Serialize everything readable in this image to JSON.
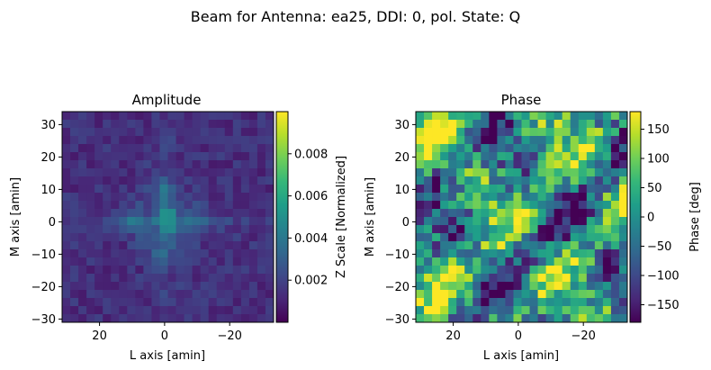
{
  "figure_title": "Beam for Antenna: ea25, DDI: 0, pol. State: Q",
  "chart_data": [
    {
      "type": "heatmap",
      "title": "Amplitude",
      "xlabel": "L axis [amin]",
      "ylabel": "M axis [amin]",
      "xlim": [
        31.5,
        -33.5
      ],
      "ylim": [
        -31.0,
        34.0
      ],
      "xticks": [
        20,
        0,
        -20
      ],
      "xtick_labels": [
        "20",
        "0",
        "−20"
      ],
      "yticks": [
        30,
        20,
        10,
        0,
        -10,
        -20,
        -30
      ],
      "ytick_labels": [
        "30",
        "20",
        "10",
        "0",
        "−10",
        "−20",
        "−30"
      ],
      "grid_size": [
        26,
        26
      ],
      "colormap": "viridis",
      "colorbar": {
        "label": "Z Scale [Normalized]",
        "range": [
          0.0,
          0.01
        ],
        "ticks": [
          0.002,
          0.004,
          0.006,
          0.008
        ],
        "tick_labels": [
          "0.002",
          "0.004",
          "0.006",
          "0.008"
        ]
      },
      "highlights": [
        {
          "l": 1,
          "m": 1.5,
          "value": 0.0098
        },
        {
          "l": -1.5,
          "m": 1.5,
          "value": 0.0095
        },
        {
          "l": -1.5,
          "m": -1,
          "value": 0.0091
        },
        {
          "l": 1,
          "m": -1,
          "value": 0.0072
        }
      ]
    },
    {
      "type": "heatmap",
      "title": "Phase",
      "xlabel": "L axis [amin]",
      "ylabel": "M axis [amin]",
      "xlim": [
        31.5,
        -33.5
      ],
      "ylim": [
        -31.0,
        34.0
      ],
      "xticks": [
        20,
        0,
        -20
      ],
      "xtick_labels": [
        "20",
        "0",
        "−20"
      ],
      "yticks": [
        30,
        20,
        10,
        0,
        -10,
        -20,
        -30
      ],
      "ytick_labels": [
        "30",
        "20",
        "10",
        "0",
        "−10",
        "−20",
        "−30"
      ],
      "grid_size": [
        26,
        26
      ],
      "colormap": "viridis",
      "colorbar": {
        "label": "Phase [deg]",
        "range": [
          -180,
          180
        ],
        "ticks": [
          150,
          100,
          50,
          0,
          -50,
          -100,
          -150
        ],
        "tick_labels": [
          "150",
          "100",
          "50",
          "0",
          "−50",
          "−100",
          "−150"
        ]
      }
    }
  ],
  "colors": {
    "viridis": [
      "#440154",
      "#482878",
      "#3e4989",
      "#31688e",
      "#26828e",
      "#1f9e89",
      "#35b779",
      "#6ece58",
      "#b5de2b",
      "#fde725"
    ]
  }
}
